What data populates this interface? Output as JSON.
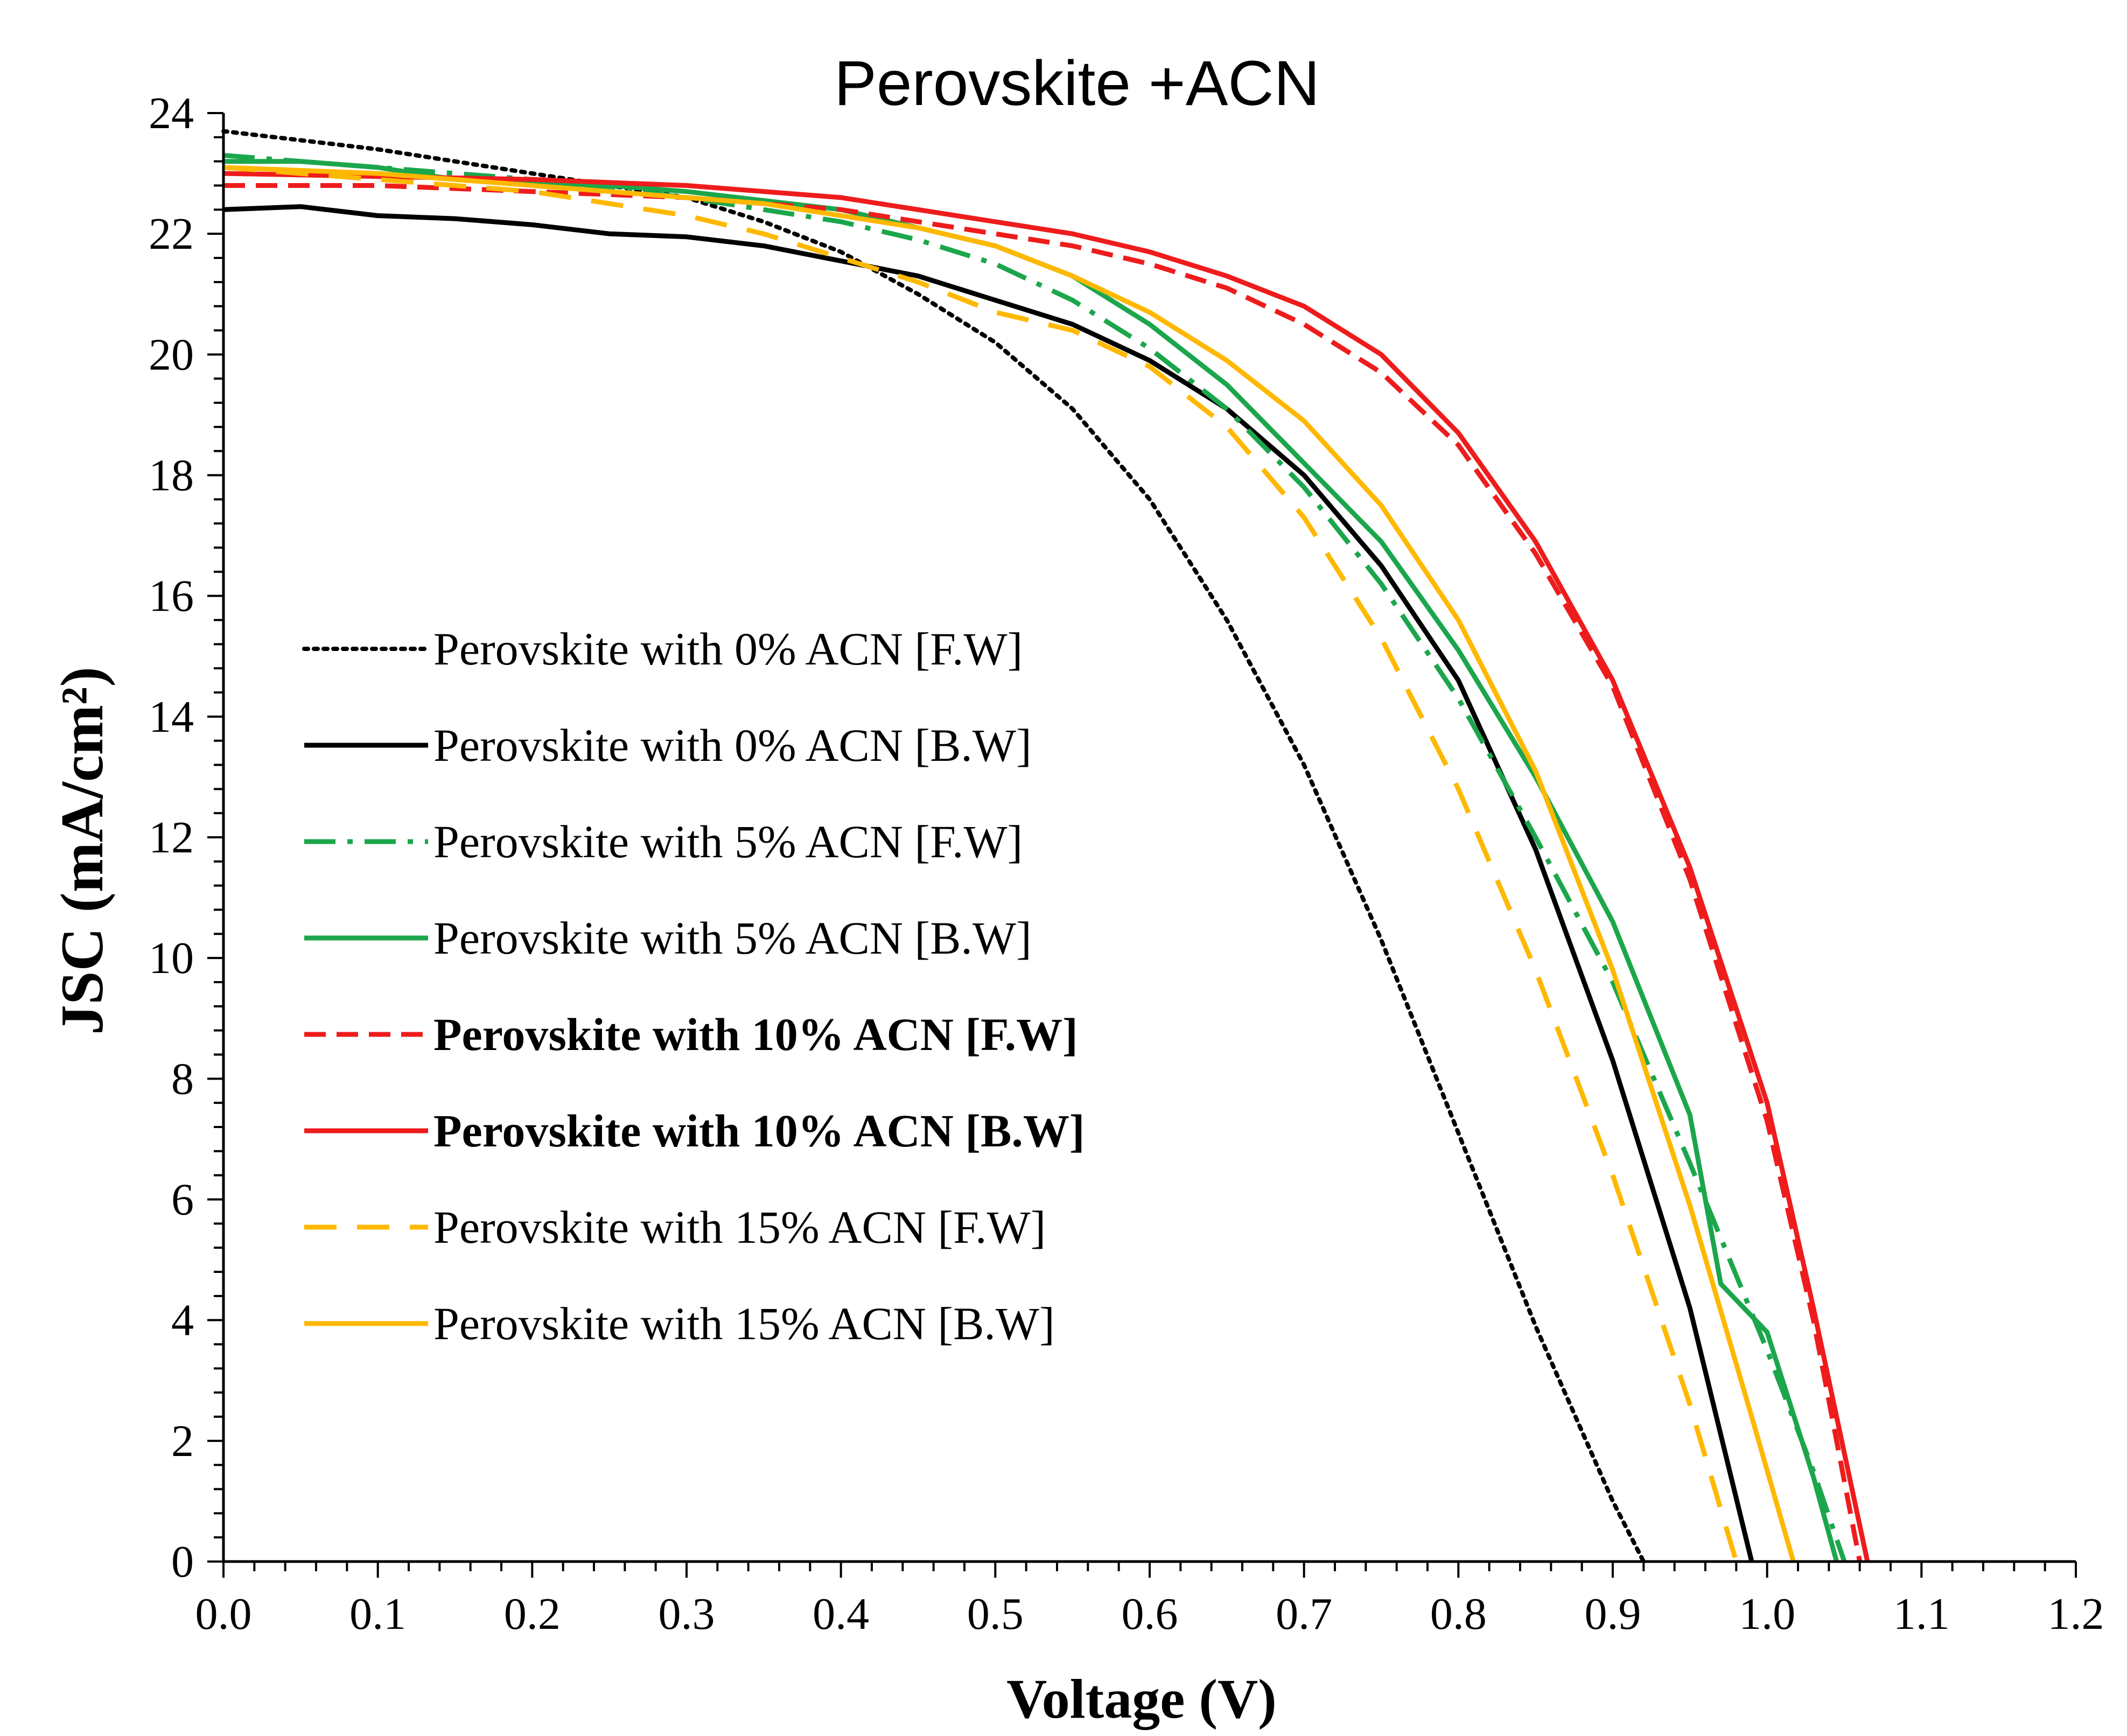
{
  "chart_data": {
    "type": "line",
    "title": "Perovskite +ACN",
    "xlabel": "Voltage (V)",
    "ylabel": "JSC (mA/cm²)",
    "xlim": [
      0,
      1.2
    ],
    "ylim": [
      0,
      24
    ],
    "xticks": [
      "0.0",
      "0.1",
      "0.2",
      "0.3",
      "0.4",
      "0.5",
      "0.6",
      "0.7",
      "0.8",
      "0.9",
      "1.0",
      "1.1",
      "1.2"
    ],
    "yticks": [
      "0",
      "2",
      "4",
      "6",
      "8",
      "10",
      "12",
      "14",
      "16",
      "18",
      "20",
      "22",
      "24"
    ],
    "grid": false,
    "legend_position": "center-left",
    "series": [
      {
        "name": "Perovskite with 0% ACN [F.W]",
        "color": "#000000",
        "style": "dotted",
        "bold": false,
        "x": [
          0,
          0.1,
          0.2,
          0.3,
          0.35,
          0.4,
          0.45,
          0.5,
          0.55,
          0.6,
          0.65,
          0.7,
          0.75,
          0.8,
          0.85,
          0.9,
          0.92
        ],
        "y": [
          23.7,
          23.4,
          23.0,
          22.6,
          22.2,
          21.7,
          21.0,
          20.2,
          19.1,
          17.6,
          15.6,
          13.2,
          10.3,
          7.1,
          3.9,
          1.0,
          0
        ]
      },
      {
        "name": "Perovskite with 0% ACN [B.W]",
        "color": "#000000",
        "style": "solid",
        "bold": false,
        "x": [
          0,
          0.05,
          0.1,
          0.15,
          0.2,
          0.25,
          0.3,
          0.35,
          0.4,
          0.45,
          0.5,
          0.55,
          0.6,
          0.65,
          0.7,
          0.75,
          0.8,
          0.85,
          0.9,
          0.95,
          0.99
        ],
        "y": [
          22.4,
          22.45,
          22.3,
          22.25,
          22.15,
          22.0,
          21.95,
          21.8,
          21.55,
          21.3,
          20.9,
          20.5,
          19.9,
          19.1,
          18.0,
          16.5,
          14.6,
          11.8,
          8.3,
          4.2,
          0
        ]
      },
      {
        "name": "Perovskite with 5% ACN [F.W]",
        "color": "#1ca64c",
        "style": "dashdot",
        "bold": false,
        "x": [
          0,
          0.1,
          0.2,
          0.3,
          0.35,
          0.4,
          0.45,
          0.5,
          0.55,
          0.6,
          0.65,
          0.7,
          0.75,
          0.8,
          0.85,
          0.9,
          0.95,
          1.0,
          1.03,
          1.05
        ],
        "y": [
          23.3,
          23.1,
          22.9,
          22.6,
          22.4,
          22.2,
          21.9,
          21.5,
          20.9,
          20.1,
          19.1,
          17.8,
          16.2,
          14.3,
          12.0,
          9.6,
          6.6,
          3.5,
          1.5,
          0
        ]
      },
      {
        "name": "Perovskite with 5% ACN  [B.W]",
        "color": "#1ca64c",
        "style": "solid",
        "bold": false,
        "x": [
          0,
          0.05,
          0.1,
          0.15,
          0.2,
          0.25,
          0.3,
          0.35,
          0.4,
          0.45,
          0.5,
          0.55,
          0.6,
          0.65,
          0.7,
          0.75,
          0.8,
          0.85,
          0.9,
          0.95,
          0.97,
          1.0,
          1.03,
          1.045
        ],
        "y": [
          23.2,
          23.2,
          23.1,
          22.9,
          22.85,
          22.8,
          22.7,
          22.55,
          22.4,
          22.1,
          21.8,
          21.3,
          20.5,
          19.5,
          18.2,
          16.9,
          15.1,
          13.0,
          10.6,
          7.4,
          4.6,
          3.8,
          1.4,
          0
        ]
      },
      {
        "name": "Perovskite with 10% ACN [F.W]",
        "color": "#ee1c1c",
        "style": "dashed",
        "bold": true,
        "x": [
          0,
          0.1,
          0.2,
          0.3,
          0.4,
          0.5,
          0.55,
          0.6,
          0.65,
          0.7,
          0.75,
          0.8,
          0.85,
          0.9,
          0.95,
          1.0,
          1.03,
          1.06
        ],
        "y": [
          22.8,
          22.8,
          22.7,
          22.6,
          22.4,
          22.0,
          21.8,
          21.5,
          21.1,
          20.5,
          19.7,
          18.5,
          16.7,
          14.5,
          11.3,
          7.3,
          4.0,
          0
        ]
      },
      {
        "name": "Perovskite with 10% ACN [B.W]",
        "color": "#ee1c1c",
        "style": "solid",
        "bold": true,
        "x": [
          0,
          0.1,
          0.2,
          0.3,
          0.4,
          0.5,
          0.55,
          0.6,
          0.65,
          0.7,
          0.75,
          0.8,
          0.85,
          0.9,
          0.95,
          1.0,
          1.03,
          1.065
        ],
        "y": [
          23.0,
          22.95,
          22.9,
          22.8,
          22.6,
          22.2,
          22.0,
          21.7,
          21.3,
          20.8,
          20.0,
          18.7,
          16.9,
          14.6,
          11.5,
          7.6,
          4.2,
          0
        ]
      },
      {
        "name": "Perovskite with 15% ACN [F.W]",
        "color": "#ffb800",
        "style": "longdash",
        "bold": false,
        "x": [
          0,
          0.1,
          0.2,
          0.3,
          0.35,
          0.4,
          0.45,
          0.5,
          0.55,
          0.6,
          0.65,
          0.7,
          0.75,
          0.8,
          0.85,
          0.9,
          0.95,
          0.98
        ],
        "y": [
          23.1,
          22.9,
          22.7,
          22.3,
          22.0,
          21.6,
          21.2,
          20.7,
          20.4,
          19.8,
          18.8,
          17.3,
          15.3,
          12.8,
          9.8,
          6.4,
          2.6,
          0
        ]
      },
      {
        "name": "Perovskite with 15% ACN [B.W]",
        "color": "#ffb800",
        "style": "solid",
        "bold": false,
        "x": [
          0,
          0.1,
          0.2,
          0.3,
          0.35,
          0.4,
          0.45,
          0.5,
          0.55,
          0.6,
          0.65,
          0.7,
          0.75,
          0.8,
          0.85,
          0.9,
          0.95,
          0.99,
          1.017
        ],
        "y": [
          23.1,
          23.0,
          22.8,
          22.6,
          22.5,
          22.3,
          22.1,
          21.8,
          21.3,
          20.7,
          19.9,
          18.9,
          17.5,
          15.6,
          13.1,
          9.8,
          5.9,
          2.4,
          0
        ]
      }
    ]
  }
}
